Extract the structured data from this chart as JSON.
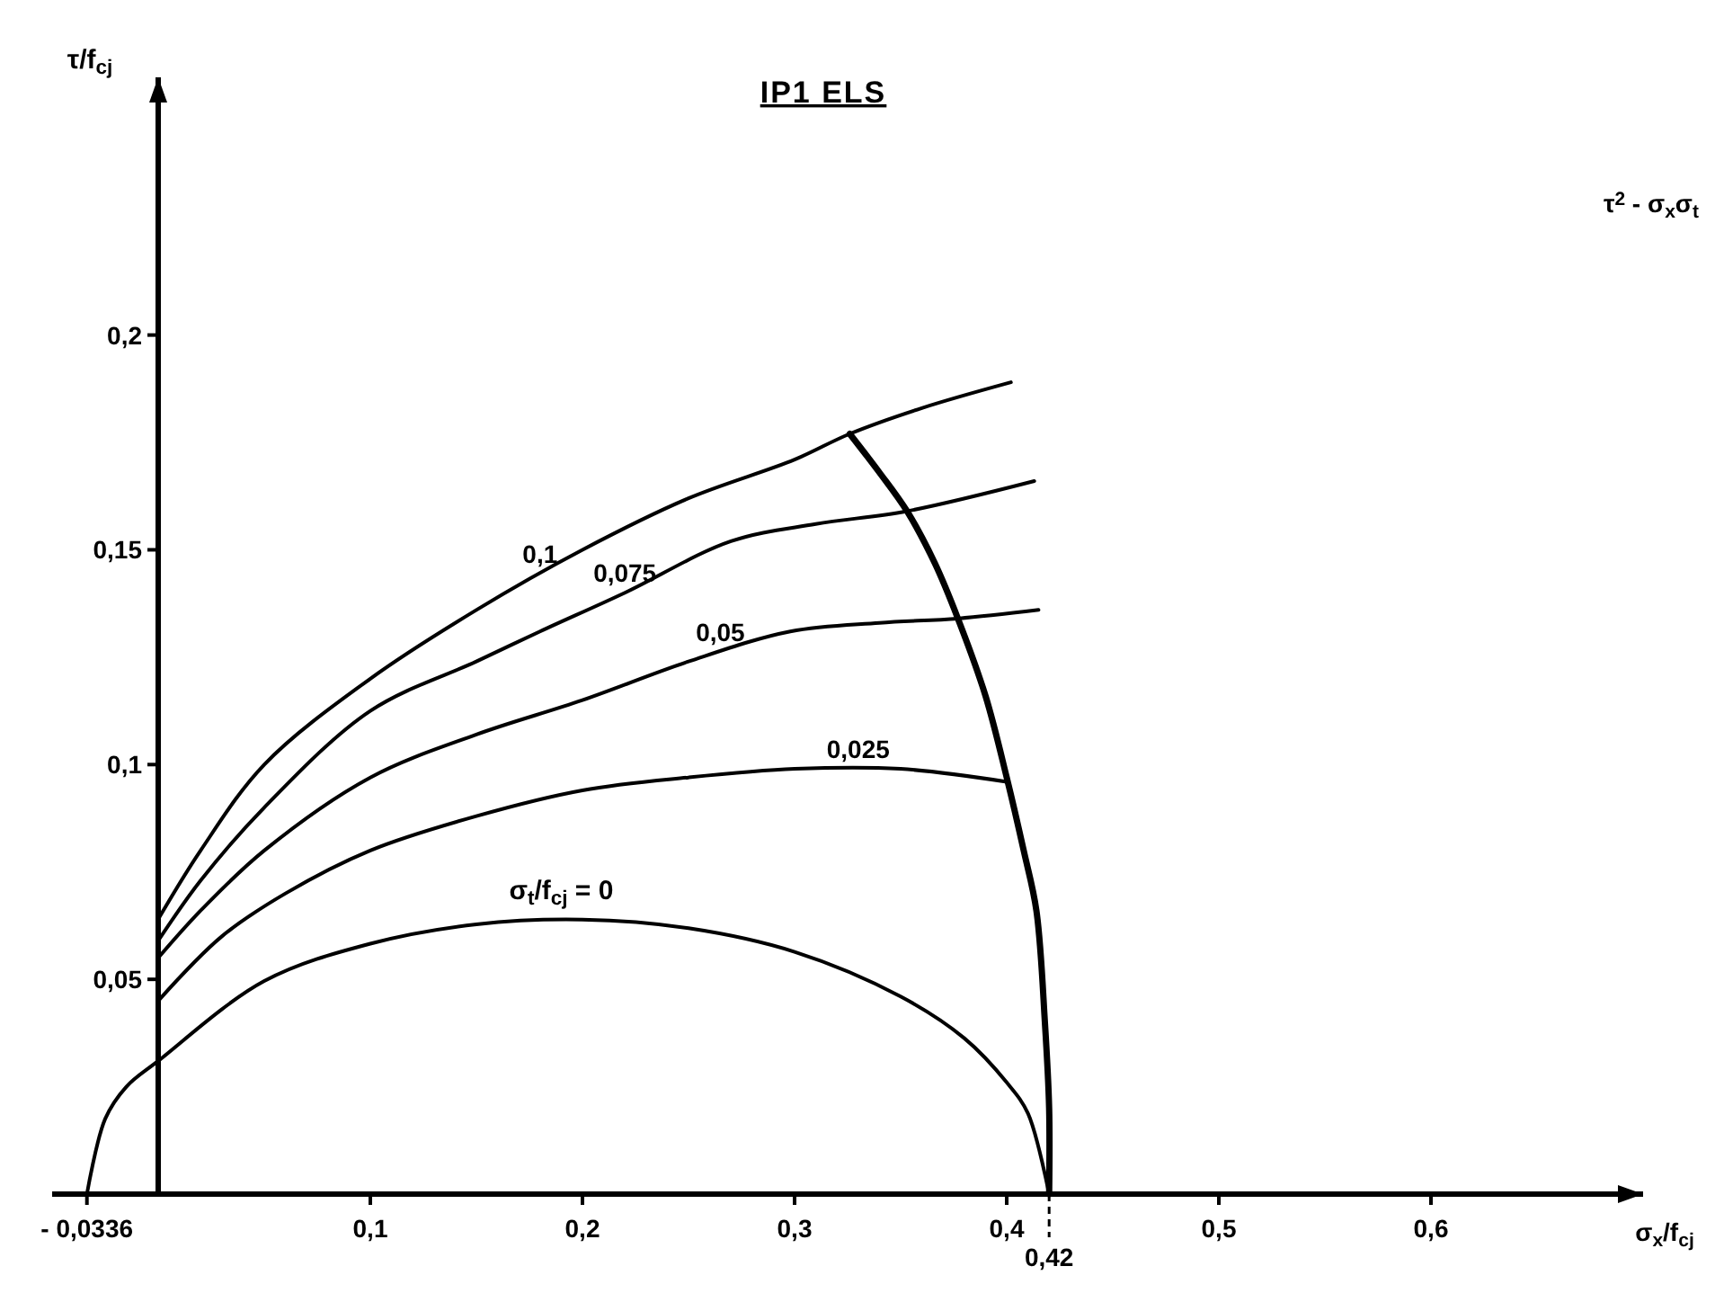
{
  "chart_data": {
    "type": "line",
    "title": "IP1 ELS",
    "xlabel": "σ$_{x}$/f$_{cj}$",
    "ylabel": "τ/f$_{cj}$",
    "annotations": [
      "τ$^{2}$ - σ$_{x}$σ$_{t}$"
    ],
    "xlim": [
      -0.05,
      0.7
    ],
    "ylim": [
      0,
      0.26
    ],
    "xticks": [
      {
        "value": -0.0336,
        "label": "- 0,0336"
      },
      {
        "value": 0.1,
        "label": "0,1"
      },
      {
        "value": 0.2,
        "label": "0,2"
      },
      {
        "value": 0.3,
        "label": "0,3"
      },
      {
        "value": 0.4,
        "label": "0,4"
      },
      {
        "value": 0.5,
        "label": "0,5"
      },
      {
        "value": 0.6,
        "label": "0,6"
      }
    ],
    "yticks": [
      {
        "value": 0.05,
        "label": "0,05"
      },
      {
        "value": 0.1,
        "label": "0,1"
      },
      {
        "value": 0.15,
        "label": "0,15"
      },
      {
        "value": 0.2,
        "label": "0,2"
      }
    ],
    "ref_lines": [
      {
        "axis": "x",
        "value": 0.42,
        "label": "0,42",
        "line_style": "dashed",
        "color": "#000000"
      }
    ],
    "grid": false,
    "legend": false,
    "marker": "none",
    "line_style": "solid",
    "series": [
      {
        "name": "0,1",
        "color": "#000000",
        "x": [
          0,
          0.02,
          0.05,
          0.1,
          0.15,
          0.2,
          0.25,
          0.3,
          0.326,
          0.36,
          0.402
        ],
        "values": [
          0.064,
          0.08,
          0.1,
          0.12,
          0.136,
          0.15,
          0.162,
          0.171,
          0.177,
          0.183,
          0.189
        ]
      },
      {
        "name": "0,075",
        "color": "#000000",
        "x": [
          0,
          0.02,
          0.05,
          0.1,
          0.15,
          0.18,
          0.22,
          0.27,
          0.31,
          0.353,
          0.413
        ],
        "values": [
          0.059,
          0.073,
          0.09,
          0.1125,
          0.124,
          0.131,
          0.14,
          0.152,
          0.156,
          0.159,
          0.166
        ]
      },
      {
        "name": "0,05",
        "color": "#000000",
        "x": [
          0,
          0.02,
          0.05,
          0.1,
          0.15,
          0.2,
          0.25,
          0.298,
          0.34,
          0.377,
          0.415
        ],
        "values": [
          0.055,
          0.066,
          0.08,
          0.097,
          0.107,
          0.115,
          0.124,
          0.131,
          0.133,
          0.134,
          0.136
        ]
      },
      {
        "name": "0,025",
        "color": "#000000",
        "x": [
          0,
          0.03,
          0.06,
          0.1,
          0.15,
          0.2,
          0.25,
          0.3,
          0.35,
          0.4
        ],
        "values": [
          0.045,
          0.06,
          0.07,
          0.08,
          0.088,
          0.094,
          0.097,
          0.099,
          0.099,
          0.096
        ]
      },
      {
        "name": "σ$_{t}$/f$_{cj}$ = 0",
        "color": "#000000",
        "x": [
          -0.0336,
          -0.025,
          -0.015,
          0,
          0.05,
          0.1,
          0.15,
          0.2,
          0.25,
          0.3,
          0.35,
          0.38,
          0.4,
          0.41,
          0.42
        ],
        "values": [
          0,
          0.0175,
          0.025,
          0.031,
          0.0496,
          0.0583,
          0.0628,
          0.0639,
          0.0619,
          0.0564,
          0.046,
          0.0363,
          0.026,
          0.0188,
          0
        ]
      },
      {
        "color": "#000000",
        "x": [
          0.326,
          0.34,
          0.353,
          0.366,
          0.377,
          0.39,
          0.4,
          0.408,
          0.414,
          0.418,
          0.42,
          0.42
        ],
        "values": [
          0.177,
          0.168,
          0.159,
          0.147,
          0.134,
          0.116,
          0.097,
          0.08,
          0.066,
          0.04,
          0.02,
          0
        ]
      }
    ]
  }
}
